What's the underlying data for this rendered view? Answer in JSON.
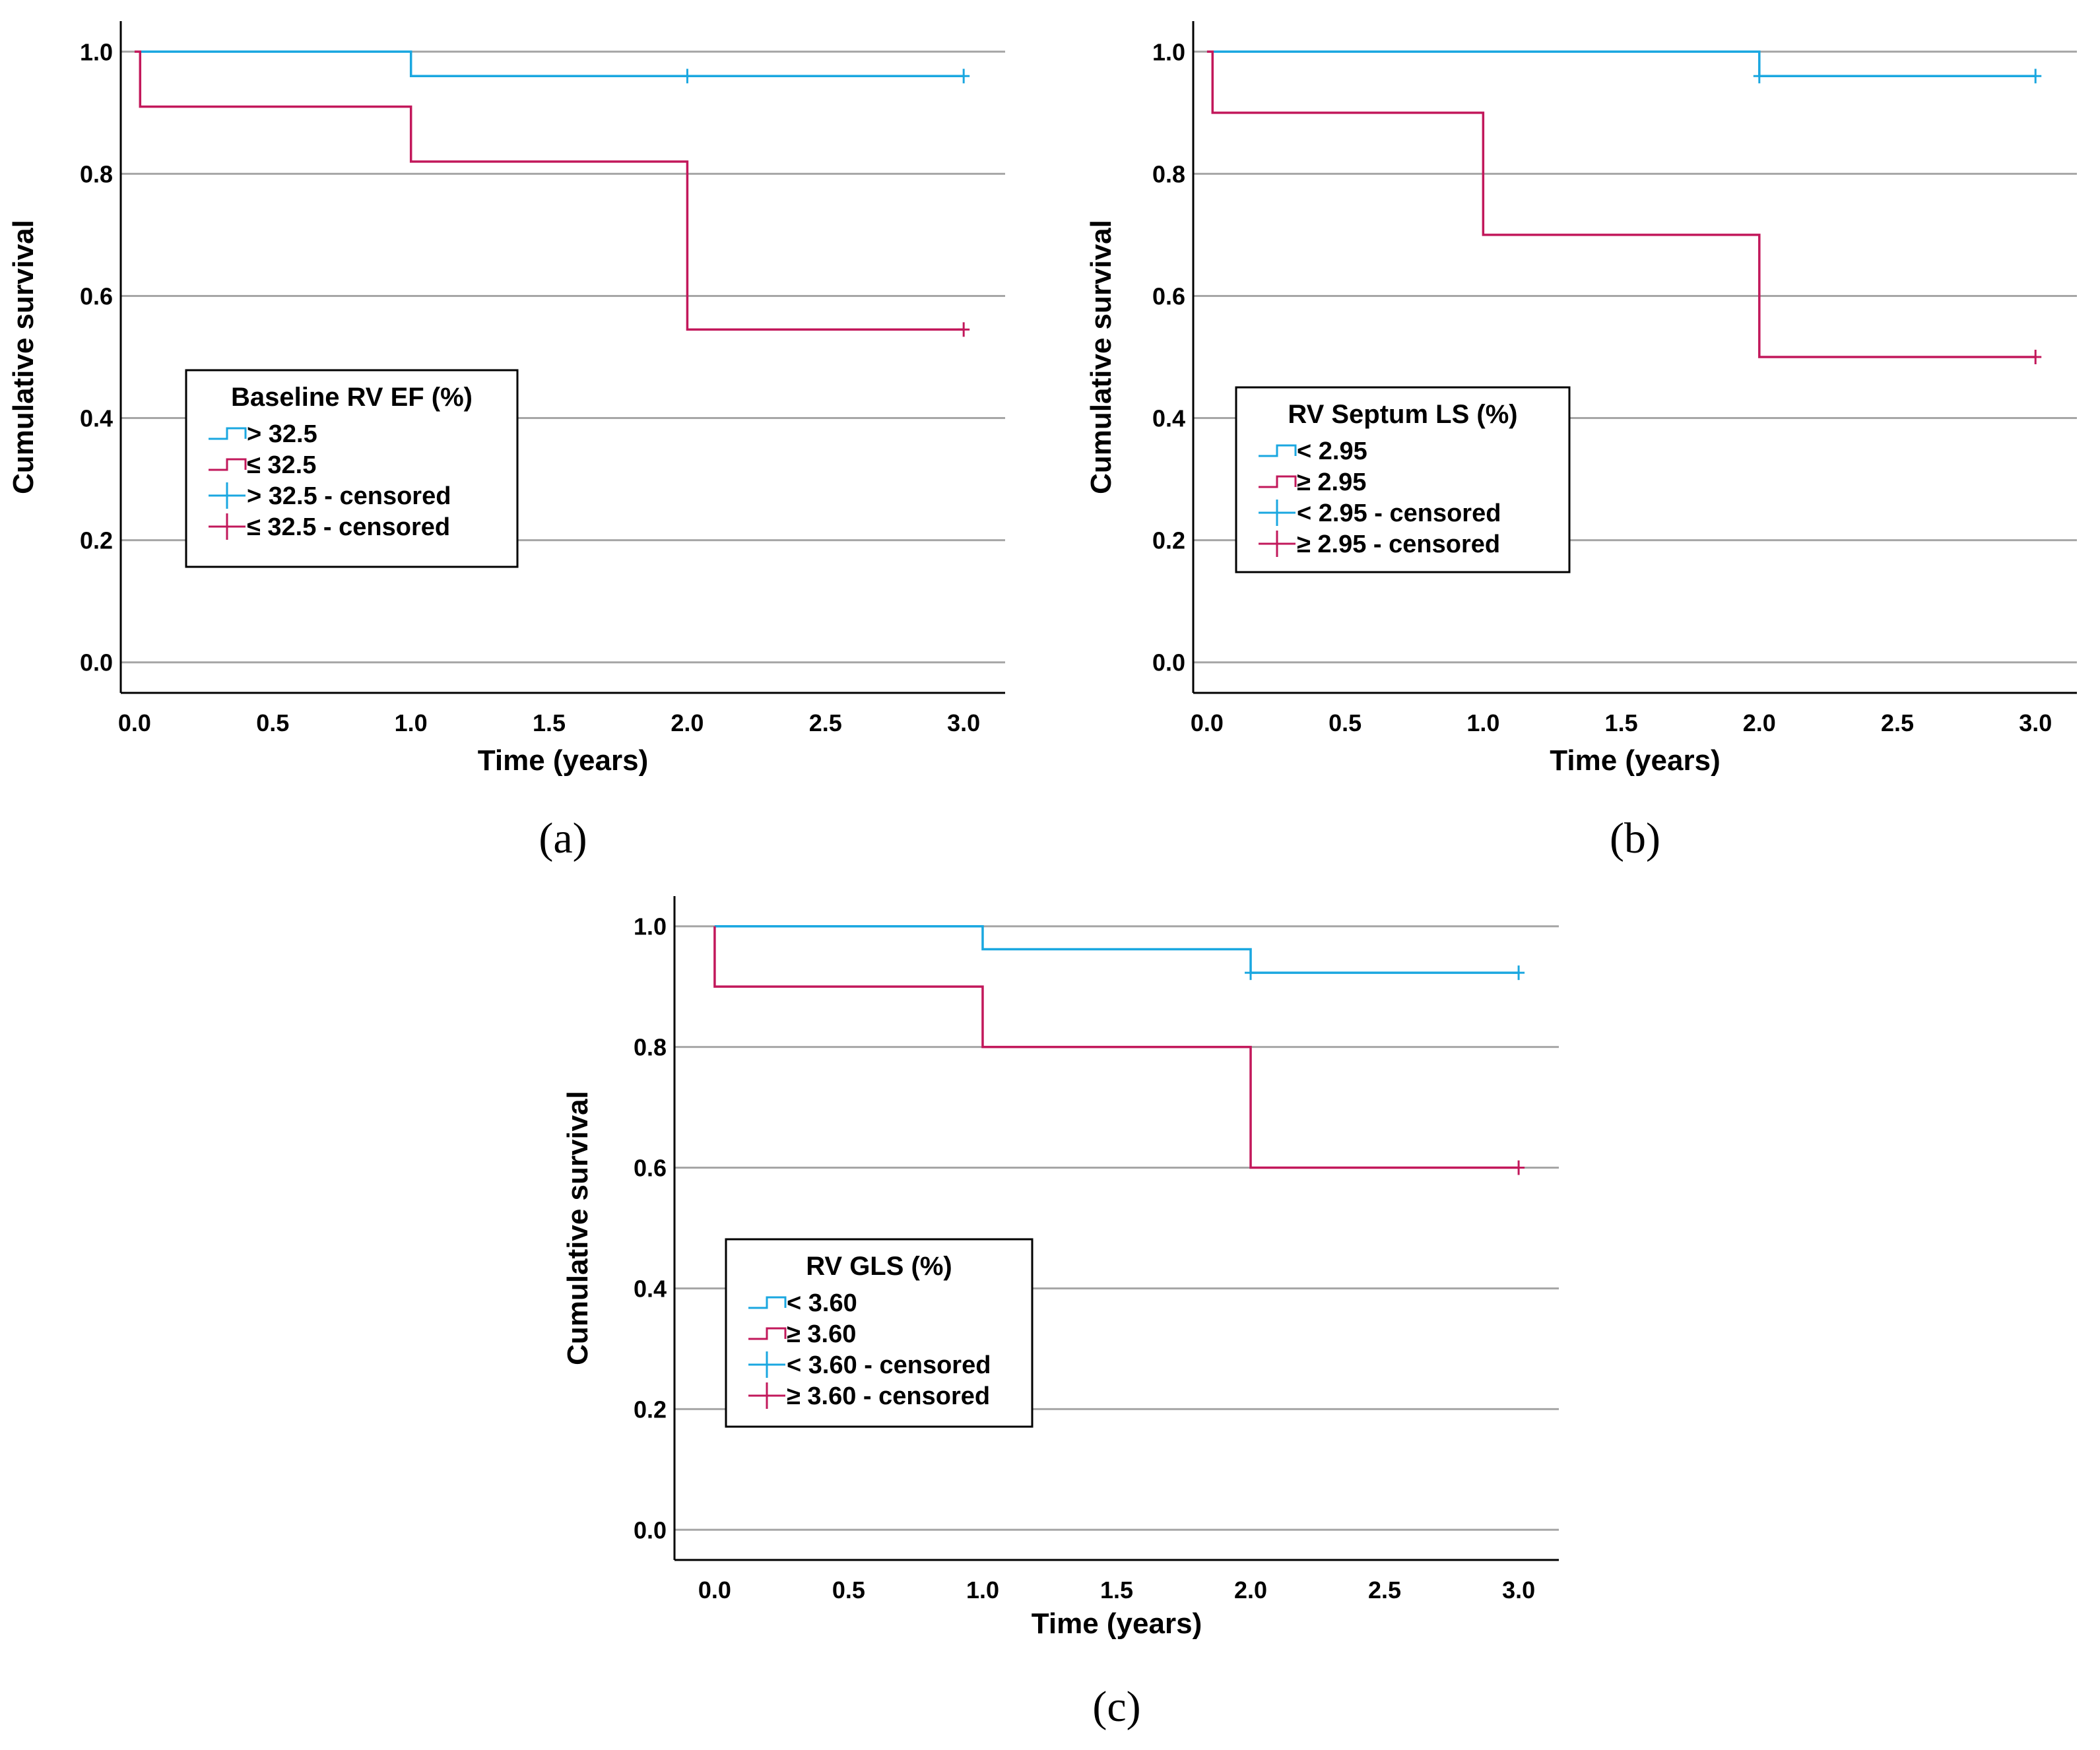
{
  "chart_data": [
    {
      "panel_label": "(a)",
      "type": "line",
      "subtype": "kaplan-meier",
      "xlabel": "Time (years)",
      "ylabel": "Cumulative survival",
      "xlim": [
        -0.05,
        3.15
      ],
      "ylim": [
        -0.05,
        1.05
      ],
      "x_ticks": [
        "0.0",
        "0.5",
        "1.0",
        "1.5",
        "2.0",
        "2.5",
        "3.0"
      ],
      "y_ticks": [
        "0.0",
        "0.2",
        "0.4",
        "0.6",
        "0.8",
        "1.0"
      ],
      "grid": "horizontal",
      "legend": {
        "title": "Baseline RV EF (%)",
        "position": "center-left",
        "entries": [
          "> 32.5",
          "≤ 32.5",
          "> 32.5 - censored",
          "≤ 32.5 - censored"
        ]
      },
      "series": [
        {
          "name": "> 32.5",
          "color": "#1aa7e0",
          "steps": [
            [
              0.0,
              1.0
            ],
            [
              1.0,
              0.96
            ],
            [
              3.0,
              0.96
            ]
          ],
          "censored": [
            [
              2.0,
              0.96
            ],
            [
              3.0,
              0.96
            ]
          ]
        },
        {
          "name": "≤ 32.5",
          "color": "#c2185b",
          "steps": [
            [
              0.0,
              1.0
            ],
            [
              0.02,
              0.91
            ],
            [
              1.0,
              0.82
            ],
            [
              2.0,
              0.545
            ],
            [
              3.0,
              0.545
            ]
          ],
          "censored": [
            [
              3.0,
              0.545
            ]
          ]
        }
      ]
    },
    {
      "panel_label": "(b)",
      "type": "line",
      "subtype": "kaplan-meier",
      "xlabel": "Time (years)",
      "ylabel": "Cumulative survival",
      "xlim": [
        -0.05,
        3.15
      ],
      "ylim": [
        -0.05,
        1.05
      ],
      "x_ticks": [
        "0.0",
        "0.5",
        "1.0",
        "1.5",
        "2.0",
        "2.5",
        "3.0"
      ],
      "y_ticks": [
        "0.0",
        "0.2",
        "0.4",
        "0.6",
        "0.8",
        "1.0"
      ],
      "grid": "horizontal",
      "legend": {
        "title": "RV Septum LS  (%)",
        "position": "center-left",
        "entries": [
          "< 2.95",
          "≥ 2.95",
          "< 2.95 - censored",
          "≥ 2.95 - censored"
        ]
      },
      "series": [
        {
          "name": "< 2.95",
          "color": "#1aa7e0",
          "steps": [
            [
              0.0,
              1.0
            ],
            [
              2.0,
              0.96
            ],
            [
              3.0,
              0.96
            ]
          ],
          "censored": [
            [
              2.0,
              0.96
            ],
            [
              3.0,
              0.96
            ]
          ]
        },
        {
          "name": "≥ 2.95",
          "color": "#c2185b",
          "steps": [
            [
              0.0,
              1.0
            ],
            [
              0.02,
              0.9
            ],
            [
              1.0,
              0.7
            ],
            [
              2.0,
              0.5
            ],
            [
              3.0,
              0.5
            ]
          ],
          "censored": [
            [
              3.0,
              0.5
            ]
          ]
        }
      ]
    },
    {
      "panel_label": "(c)",
      "type": "line",
      "subtype": "kaplan-meier",
      "xlabel": "Time (years)",
      "ylabel": "Cumulative survival",
      "xlim": [
        -0.15,
        3.15
      ],
      "ylim": [
        -0.05,
        1.05
      ],
      "x_ticks": [
        "0.0",
        "0.5",
        "1.0",
        "1.5",
        "2.0",
        "2.5",
        "3.0"
      ],
      "y_ticks": [
        "0.0",
        "0.2",
        "0.4",
        "0.6",
        "0.8",
        "1.0"
      ],
      "grid": "horizontal",
      "legend": {
        "title": "RV GLS  (%)",
        "position": "center-left",
        "entries": [
          "< 3.60",
          "≥ 3.60",
          "< 3.60 - censored",
          "≥ 3.60 - censored"
        ]
      },
      "series": [
        {
          "name": "< 3.60",
          "color": "#1aa7e0",
          "steps": [
            [
              0.0,
              1.0
            ],
            [
              1.0,
              0.962
            ],
            [
              2.0,
              0.923
            ],
            [
              3.0,
              0.923
            ]
          ],
          "censored": [
            [
              2.0,
              0.923
            ],
            [
              3.0,
              0.923
            ]
          ]
        },
        {
          "name": "≥ 3.60",
          "color": "#c2185b",
          "steps": [
            [
              0.0,
              1.0
            ],
            [
              0.0,
              0.9
            ],
            [
              1.0,
              0.8
            ],
            [
              2.0,
              0.6
            ],
            [
              3.0,
              0.6
            ]
          ],
          "censored": [
            [
              3.0,
              0.6
            ]
          ]
        }
      ]
    }
  ]
}
